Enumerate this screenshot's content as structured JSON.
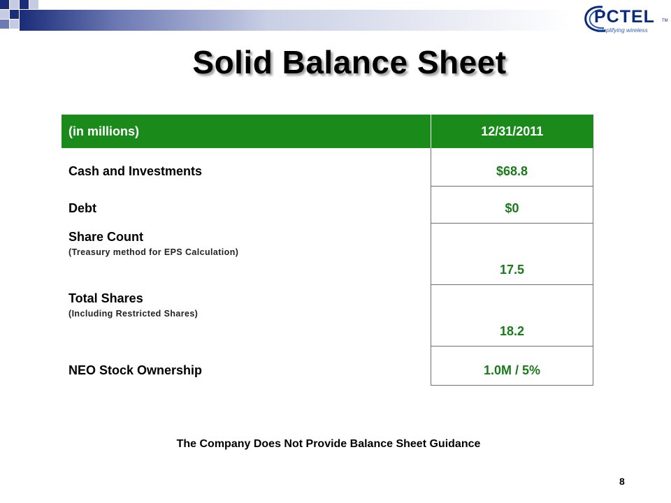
{
  "slide": {
    "title": "Solid Balance Sheet",
    "footnote": "The Company Does Not Provide Balance Sheet Guidance",
    "page_number": "8"
  },
  "logo": {
    "name": "PCTEL",
    "tagline": "simplifying wireless",
    "tm": "TM"
  },
  "table": {
    "headers": [
      "(in millions)",
      "12/31/2011"
    ],
    "rows": [
      {
        "label": "Cash and Investments",
        "sub": "",
        "value": "$68.8"
      },
      {
        "label": "Debt",
        "sub": "",
        "value": "$0"
      },
      {
        "label": "Share Count",
        "sub": "(Treasury method for EPS Calculation)",
        "value": "17.5"
      },
      {
        "label": "Total Shares",
        "sub": "(Including Restricted Shares)",
        "value": "18.2"
      },
      {
        "label": "NEO Stock Ownership",
        "sub": "",
        "value": "1.0M / 5%"
      }
    ]
  },
  "colors": {
    "header_green": "#1a8a1a",
    "value_green": "#1a7a1a",
    "brand_blue": "#0b2a7a"
  }
}
